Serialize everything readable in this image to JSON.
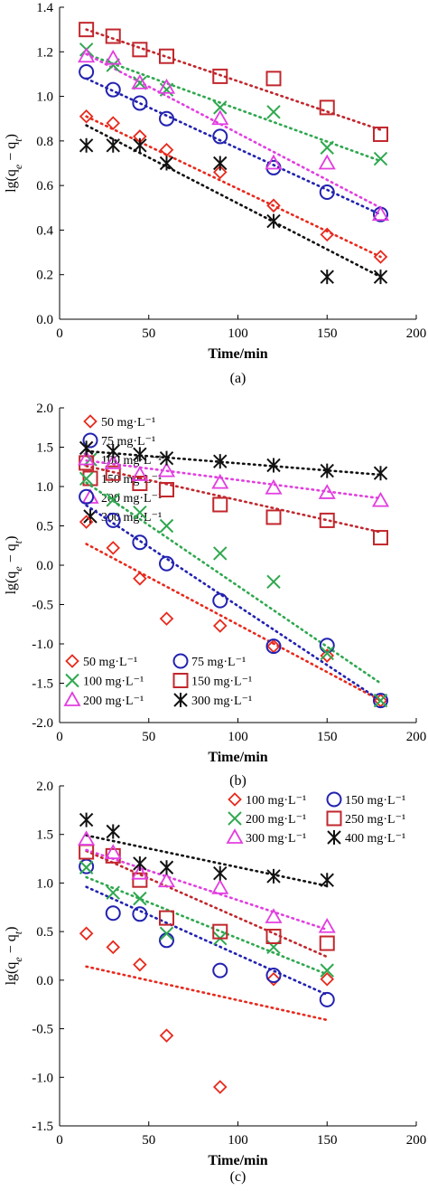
{
  "chart_data": [
    {
      "type": "scatter",
      "panel_label": "(a)",
      "xlabel": "Time/min",
      "ylabel": "lg(qe − qt)",
      "ylabel_parts": {
        "base": "lg(q",
        "sub1": "e",
        "mid": " − q",
        "sub2": "t",
        "end": ")"
      },
      "xlim": [
        0,
        200
      ],
      "ylim": [
        0.0,
        1.4
      ],
      "xticks": [
        0,
        50,
        100,
        150,
        200
      ],
      "yticks": [
        0.0,
        0.2,
        0.4,
        0.6,
        0.8,
        1.0,
        1.2,
        1.4
      ],
      "ytick_decimals": 1,
      "grid": false,
      "legend_placement": "left",
      "series": [
        {
          "name": "50 mg·L⁻¹",
          "marker": "diamond",
          "color": "#e8291c",
          "x": [
            15,
            30,
            45,
            60,
            90,
            120,
            150,
            180
          ],
          "y": [
            0.91,
            0.88,
            0.82,
            0.76,
            0.66,
            0.51,
            0.38,
            0.28
          ],
          "fit": [
            [
              15,
              0.91
            ],
            [
              180,
              0.28
            ]
          ]
        },
        {
          "name": "75  mg·L⁻¹",
          "marker": "circle",
          "color": "#2222b0",
          "x": [
            15,
            30,
            45,
            60,
            90,
            120,
            150,
            180
          ],
          "y": [
            1.11,
            1.03,
            0.97,
            0.9,
            0.82,
            0.68,
            0.57,
            0.47
          ],
          "fit": [
            [
              15,
              1.08
            ],
            [
              180,
              0.47
            ]
          ]
        },
        {
          "name": "100 mg·L⁻¹",
          "marker": "x",
          "color": "#2fa84f",
          "x": [
            15,
            30,
            45,
            60,
            90,
            120,
            150,
            180
          ],
          "y": [
            1.21,
            1.14,
            1.06,
            1.03,
            0.95,
            0.93,
            0.77,
            0.72
          ],
          "fit": [
            [
              15,
              1.19
            ],
            [
              180,
              0.71
            ]
          ]
        },
        {
          "name": "150 mg·L⁻¹",
          "marker": "square",
          "color": "#c1272d",
          "x": [
            15,
            30,
            45,
            60,
            90,
            120,
            150,
            180
          ],
          "y": [
            1.3,
            1.27,
            1.21,
            1.18,
            1.09,
            1.08,
            0.95,
            0.83
          ],
          "fit": [
            [
              15,
              1.3
            ],
            [
              180,
              0.85
            ]
          ]
        },
        {
          "name": "200 mg·L⁻¹",
          "marker": "triangle",
          "color": "#e23ee0",
          "x": [
            15,
            30,
            45,
            60,
            90,
            120,
            150,
            180
          ],
          "y": [
            1.18,
            1.17,
            1.06,
            1.04,
            0.9,
            0.7,
            0.7,
            0.47
          ],
          "fit": [
            [
              15,
              1.19
            ],
            [
              180,
              0.5
            ]
          ]
        },
        {
          "name": "300 mg·L⁻¹",
          "marker": "asterisk",
          "color": "#111111",
          "x": [
            15,
            30,
            45,
            60,
            90,
            120,
            150,
            180
          ],
          "y": [
            0.78,
            0.78,
            0.78,
            0.7,
            0.7,
            0.44,
            0.19,
            0.19
          ],
          "fit": [
            [
              15,
              0.87
            ],
            [
              180,
              0.19
            ]
          ]
        }
      ]
    },
    {
      "type": "scatter",
      "panel_label": "(b)",
      "xlabel": "Time/min",
      "ylabel": "lg(qe − qt)",
      "ylabel_parts": {
        "base": "lg(q",
        "sub1": "e",
        "mid": " − q",
        "sub2": "t",
        "end": ")"
      },
      "xlim": [
        0,
        200
      ],
      "ylim": [
        -2.0,
        2.0
      ],
      "xticks": [
        0,
        50,
        100,
        150,
        200
      ],
      "yticks": [
        -2.0,
        -1.5,
        -1.0,
        -0.5,
        0.0,
        0.5,
        1.0,
        1.5,
        2.0
      ],
      "ytick_decimals": 1,
      "grid": false,
      "legend_placement": "bottom-left",
      "series": [
        {
          "name": "50 mg·L⁻¹",
          "marker": "diamond",
          "color": "#e8291c",
          "x": [
            15,
            30,
            45,
            60,
            90,
            120,
            150,
            180
          ],
          "y": [
            0.55,
            0.22,
            -0.17,
            -0.68,
            -0.77,
            -1.03,
            -1.15,
            -1.72
          ],
          "fit": [
            [
              15,
              0.27
            ],
            [
              180,
              -1.72
            ]
          ]
        },
        {
          "name": "75  mg·L⁻¹",
          "marker": "circle",
          "color": "#2222b0",
          "x": [
            15,
            30,
            45,
            60,
            90,
            120,
            150,
            180
          ],
          "y": [
            0.87,
            0.57,
            0.29,
            0.02,
            -0.45,
            -1.03,
            -1.02,
            -1.72
          ],
          "fit": [
            [
              15,
              0.76
            ],
            [
              180,
              -1.72
            ]
          ]
        },
        {
          "name": "100 mg·L⁻¹",
          "marker": "x",
          "color": "#2fa84f",
          "x": [
            15,
            30,
            45,
            60,
            90,
            120,
            150,
            180
          ],
          "y": [
            1.1,
            0.83,
            0.67,
            0.5,
            0.15,
            -0.21,
            -1.12,
            -1.72
          ],
          "fit": [
            [
              15,
              1.05
            ],
            [
              180,
              -1.5
            ]
          ]
        },
        {
          "name": "150 mg·L⁻¹",
          "marker": "square",
          "color": "#c1272d",
          "x": [
            15,
            30,
            45,
            60,
            90,
            120,
            150,
            180
          ],
          "y": [
            1.3,
            1.17,
            1.04,
            0.96,
            0.77,
            0.61,
            0.57,
            0.35
          ],
          "fit": [
            [
              15,
              1.26
            ],
            [
              180,
              0.42
            ]
          ]
        },
        {
          "name": "200 mg·L⁻¹",
          "marker": "triangle",
          "color": "#e23ee0",
          "x": [
            15,
            30,
            45,
            60,
            90,
            120,
            150,
            180
          ],
          "y": [
            1.35,
            1.3,
            1.15,
            1.2,
            1.05,
            0.98,
            0.92,
            0.82
          ],
          "fit": [
            [
              15,
              1.33
            ],
            [
              180,
              0.85
            ]
          ]
        },
        {
          "name": "300 mg·L⁻¹",
          "marker": "asterisk",
          "color": "#111111",
          "x": [
            15,
            30,
            45,
            60,
            90,
            120,
            150,
            180
          ],
          "y": [
            1.49,
            1.45,
            1.41,
            1.36,
            1.32,
            1.27,
            1.2,
            1.17
          ],
          "fit": [
            [
              15,
              1.45
            ],
            [
              180,
              1.15
            ]
          ]
        }
      ]
    },
    {
      "type": "scatter",
      "panel_label": "(c)",
      "xlabel": "Time/min",
      "ylabel": "lg(qe − qt)",
      "ylabel_parts": {
        "base": "lg(q",
        "sub1": "e",
        "mid": " − q",
        "sub2": "t",
        "end": ")"
      },
      "xlim": [
        0,
        200
      ],
      "ylim": [
        -1.5,
        2.0
      ],
      "xticks": [
        0,
        50,
        100,
        150,
        200
      ],
      "yticks": [
        -1.5,
        -1.0,
        -0.5,
        0.0,
        0.5,
        1.0,
        1.5,
        2.0
      ],
      "ytick_decimals": 1,
      "grid": false,
      "legend_placement": "top-right",
      "series": [
        {
          "name": "100 mg·L⁻¹",
          "marker": "diamond",
          "color": "#e8291c",
          "x": [
            15,
            30,
            45,
            60,
            90,
            120,
            150
          ],
          "y": [
            0.48,
            0.34,
            0.16,
            -0.57,
            -1.1,
            0.01,
            0.01
          ],
          "fit": [
            [
              15,
              0.14
            ],
            [
              150,
              -0.41
            ]
          ]
        },
        {
          "name": "150 mg·L⁻¹",
          "marker": "circle",
          "color": "#2222b0",
          "x": [
            15,
            30,
            45,
            60,
            90,
            120,
            150
          ],
          "y": [
            1.17,
            0.69,
            0.68,
            0.41,
            0.1,
            0.05,
            -0.2
          ],
          "fit": [
            [
              15,
              0.96
            ],
            [
              150,
              -0.15
            ]
          ]
        },
        {
          "name": "200 mg·L⁻¹",
          "marker": "x",
          "color": "#2fa84f",
          "x": [
            15,
            30,
            45,
            60,
            90,
            120,
            150
          ],
          "y": [
            1.16,
            0.9,
            0.84,
            0.48,
            0.43,
            0.34,
            0.1
          ],
          "fit": [
            [
              15,
              1.06
            ],
            [
              150,
              0.06
            ]
          ]
        },
        {
          "name": "250 mg·L⁻¹",
          "marker": "square",
          "color": "#c1272d",
          "x": [
            15,
            30,
            45,
            60,
            90,
            120,
            150
          ],
          "y": [
            1.32,
            1.28,
            1.03,
            0.64,
            0.5,
            0.45,
            0.38
          ],
          "fit": [
            [
              15,
              1.33
            ],
            [
              150,
              0.24
            ]
          ]
        },
        {
          "name": "300 mg·L⁻¹",
          "marker": "triangle",
          "color": "#e23ee0",
          "x": [
            15,
            30,
            45,
            60,
            90,
            120,
            150
          ],
          "y": [
            1.45,
            1.31,
            1.1,
            1.02,
            0.95,
            0.65,
            0.55
          ],
          "fit": [
            [
              15,
              1.34
            ],
            [
              150,
              0.52
            ]
          ]
        },
        {
          "name": "400 mg·L⁻¹",
          "marker": "asterisk",
          "color": "#111111",
          "x": [
            15,
            30,
            45,
            60,
            90,
            120,
            150
          ],
          "y": [
            1.65,
            1.53,
            1.2,
            1.16,
            1.1,
            1.07,
            1.03
          ],
          "fit": [
            [
              15,
              1.49
            ],
            [
              150,
              0.97
            ]
          ]
        }
      ]
    }
  ]
}
